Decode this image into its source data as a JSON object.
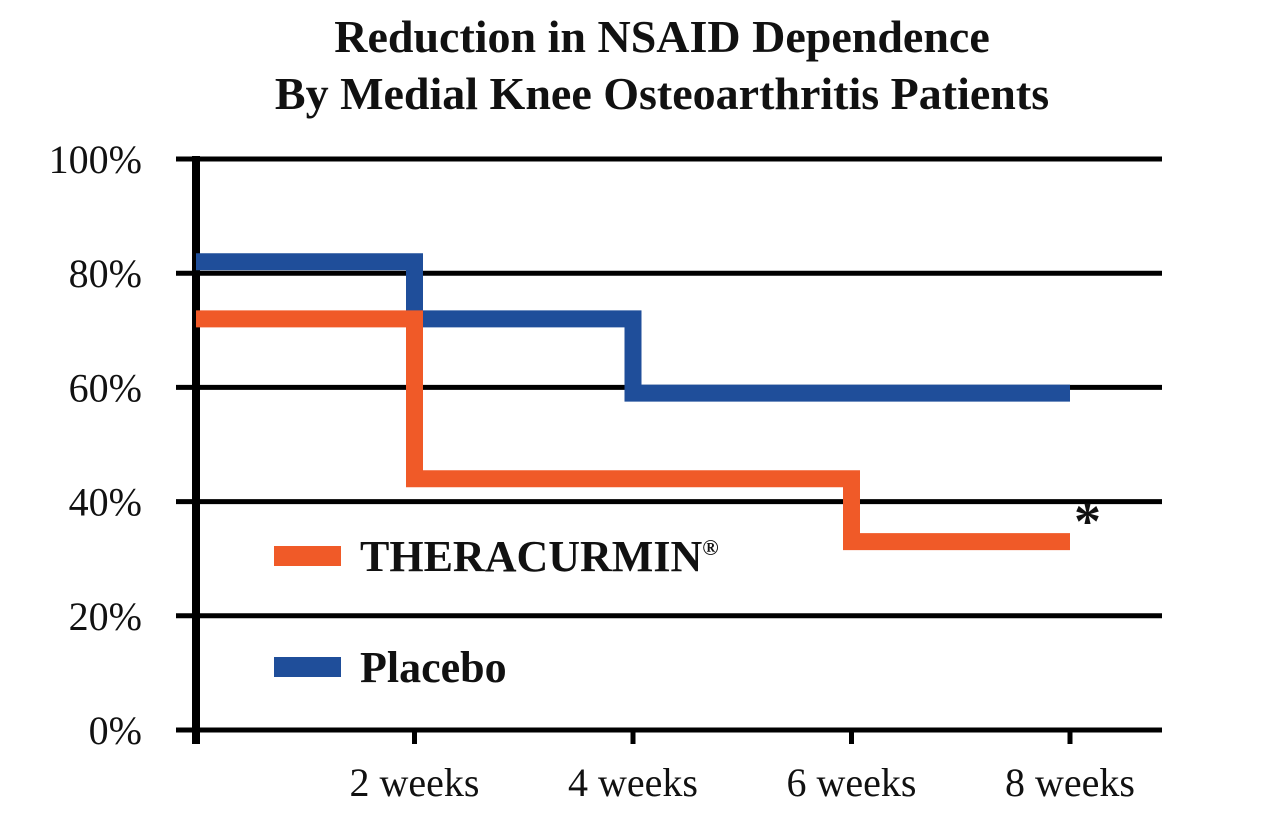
{
  "chart_data": {
    "type": "line",
    "step": true,
    "title": [
      "Reduction in NSAID Dependence",
      "By Medial Knee Osteoarthritis Patients"
    ],
    "xlabel": "",
    "ylabel": "",
    "x_ticks": [
      "2 weeks",
      "4 weeks",
      "6 weeks",
      "8 weeks"
    ],
    "x_domain_weeks": [
      0,
      8
    ],
    "ylim": [
      0,
      100
    ],
    "y_ticks": [
      "0%",
      "20%",
      "40%",
      "60%",
      "80%",
      "100%"
    ],
    "grid": "horizontal",
    "legend_position": "lower-left",
    "series": [
      {
        "name": "THERACURMIN",
        "superscript": "®",
        "color": "#f05a28",
        "points": [
          [
            0,
            72
          ],
          [
            2,
            72
          ],
          [
            2,
            44
          ],
          [
            6,
            44
          ],
          [
            6,
            33
          ],
          [
            8,
            33
          ]
        ]
      },
      {
        "name": "Placebo",
        "superscript": "",
        "color": "#1f4e9a",
        "points": [
          [
            0,
            82
          ],
          [
            2,
            82
          ],
          [
            2,
            72
          ],
          [
            4,
            72
          ],
          [
            4,
            59
          ],
          [
            8,
            59
          ]
        ]
      }
    ],
    "annotations": [
      {
        "text": "*",
        "x": 8,
        "y": 33,
        "series": "THERACURMIN"
      }
    ]
  }
}
